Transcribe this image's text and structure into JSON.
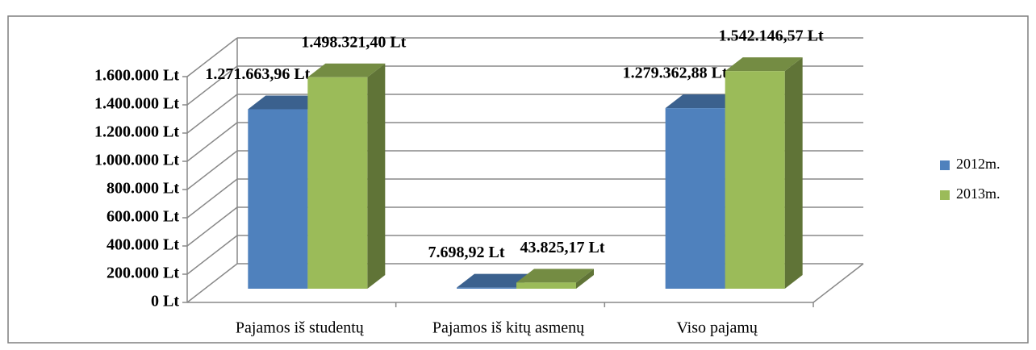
{
  "chart_data": {
    "type": "bar3d",
    "categories": [
      "Pajamos iš studentų",
      "Pajamos iš kitų asmenų",
      "Viso pajamų"
    ],
    "series": [
      {
        "name": "2012m.",
        "color": "#4f81bd",
        "values": [
          1271663.96,
          7698.92,
          1279362.88
        ],
        "value_labels": [
          "1.271.663,96 Lt",
          "7.698,92 Lt",
          "1.279.362,88 Lt"
        ]
      },
      {
        "name": "2013m.",
        "color": "#9bbb59",
        "values": [
          1498321.4,
          43825.17,
          1542146.57
        ],
        "value_labels": [
          "1.498.321,40 Lt",
          "43.825,17 Lt",
          "1.542.146,57 Lt"
        ]
      }
    ],
    "ylim": [
      0,
      1600000
    ],
    "yticks": [
      {
        "value": 0,
        "label": "0 Lt"
      },
      {
        "value": 200000,
        "label": "200.000 Lt"
      },
      {
        "value": 400000,
        "label": "400.000 Lt"
      },
      {
        "value": 600000,
        "label": "600.000 Lt"
      },
      {
        "value": 800000,
        "label": "800.000 Lt"
      },
      {
        "value": 1000000,
        "label": "1.000.000 Lt"
      },
      {
        "value": 1200000,
        "label": "1.200.000 Lt"
      },
      {
        "value": 1400000,
        "label": "1.400.000 Lt"
      },
      {
        "value": 1600000,
        "label": "1.600.000 Lt"
      }
    ],
    "grid": true,
    "legend": "right"
  }
}
